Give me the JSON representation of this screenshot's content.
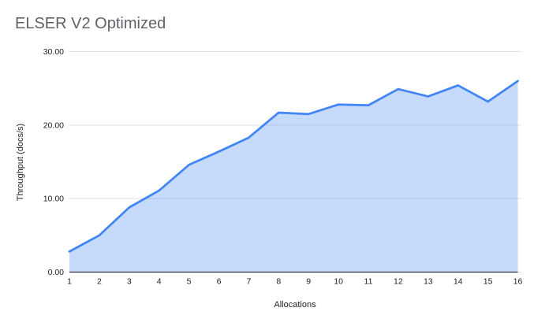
{
  "window": {
    "background": "#ffffff"
  },
  "chart_data": {
    "type": "area",
    "title": "ELSER V2 Optimized",
    "xlabel": "Allocations",
    "ylabel": "Throughput (docs/s)",
    "categories": [
      "1",
      "2",
      "3",
      "4",
      "5",
      "6",
      "7",
      "8",
      "9",
      "10",
      "11",
      "12",
      "13",
      "14",
      "15",
      "16"
    ],
    "values": [
      2.8,
      5.0,
      8.8,
      11.1,
      14.6,
      16.4,
      18.3,
      21.7,
      21.5,
      22.8,
      22.7,
      24.9,
      23.9,
      25.4,
      23.2,
      26.0
    ],
    "series_name": "Throughput (docs/s)",
    "ylim": [
      0,
      30
    ],
    "yticks": [
      0,
      10,
      20,
      30
    ],
    "ytick_labels": [
      "0.00",
      "10.00",
      "20.00",
      "30.00"
    ],
    "grid": true,
    "legend": "none",
    "colors": {
      "line": "#4285f4",
      "fill": "#4285f4",
      "fill_opacity": 0.3,
      "gridline": "#e0e0e0",
      "axis_line": "#333333",
      "tick_label": "#202124",
      "axis_title": "#202124",
      "title": "#5f6368"
    }
  }
}
